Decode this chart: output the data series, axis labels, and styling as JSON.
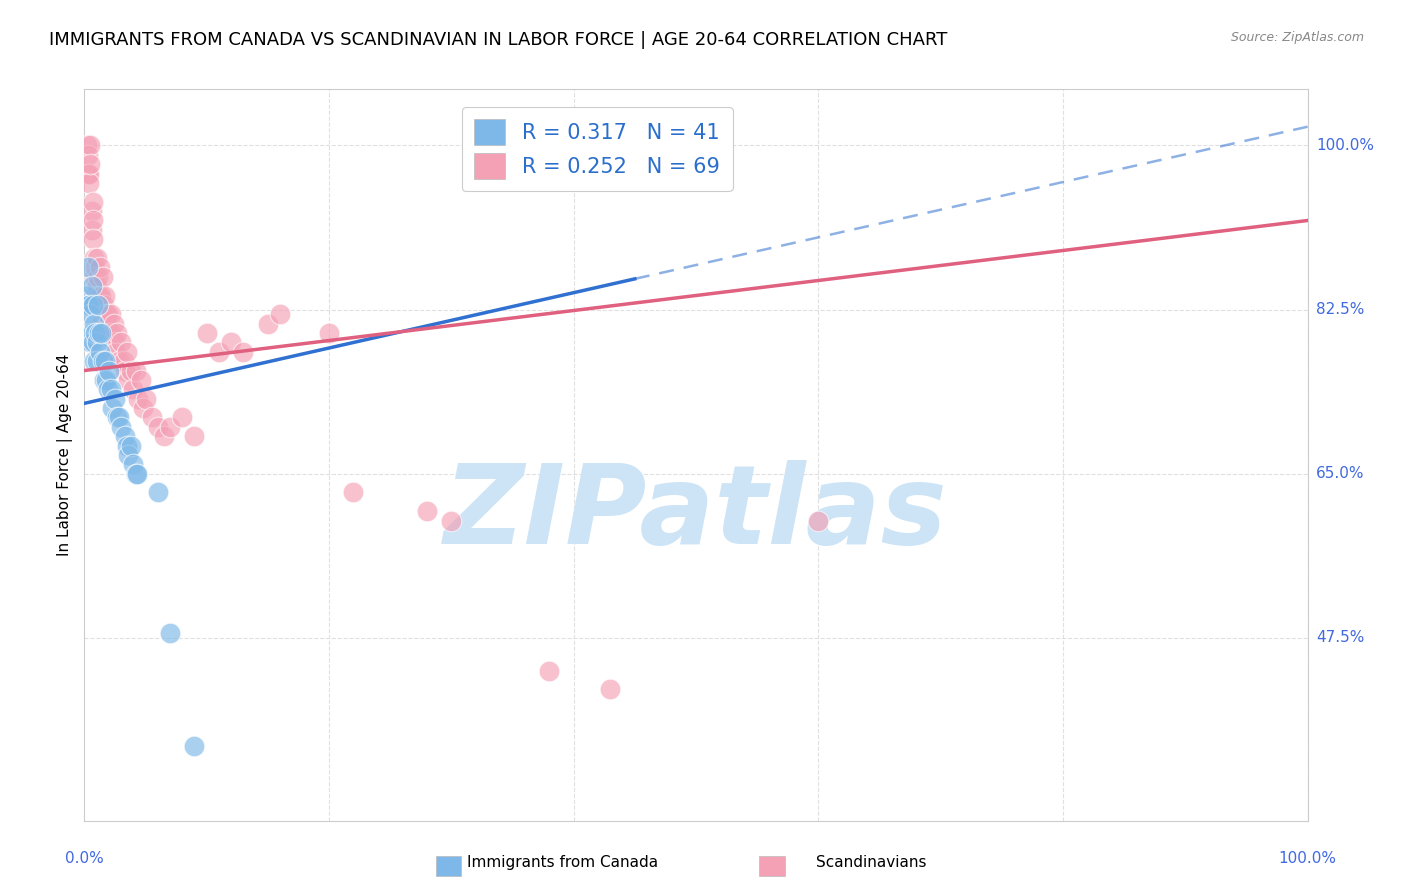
{
  "title": "IMMIGRANTS FROM CANADA VS SCANDINAVIAN IN LABOR FORCE | AGE 20-64 CORRELATION CHART",
  "source": "Source: ZipAtlas.com",
  "ylabel": "In Labor Force | Age 20-64",
  "ytick_labels": [
    "100.0%",
    "82.5%",
    "65.0%",
    "47.5%"
  ],
  "ytick_values": [
    1.0,
    0.825,
    0.65,
    0.475
  ],
  "xlim": [
    0.0,
    1.0
  ],
  "ylim": [
    0.28,
    1.06
  ],
  "canada_R": 0.317,
  "canada_N": 41,
  "scandi_R": 0.252,
  "scandi_N": 69,
  "canada_color": "#7db8e8",
  "scandi_color": "#f4a0b5",
  "canada_line_color": "#3070d0",
  "scandi_line_color": "#e06080",
  "canada_scatter": [
    [
      0.002,
      0.84
    ],
    [
      0.003,
      0.87
    ],
    [
      0.003,
      0.83
    ],
    [
      0.004,
      0.83
    ],
    [
      0.005,
      0.82
    ],
    [
      0.005,
      0.79
    ],
    [
      0.006,
      0.85
    ],
    [
      0.006,
      0.8
    ],
    [
      0.007,
      0.83
    ],
    [
      0.007,
      0.79
    ],
    [
      0.008,
      0.81
    ],
    [
      0.008,
      0.77
    ],
    [
      0.009,
      0.8
    ],
    [
      0.01,
      0.79
    ],
    [
      0.01,
      0.77
    ],
    [
      0.011,
      0.83
    ],
    [
      0.012,
      0.8
    ],
    [
      0.013,
      0.78
    ],
    [
      0.014,
      0.8
    ],
    [
      0.015,
      0.77
    ],
    [
      0.016,
      0.75
    ],
    [
      0.017,
      0.77
    ],
    [
      0.018,
      0.75
    ],
    [
      0.019,
      0.74
    ],
    [
      0.02,
      0.76
    ],
    [
      0.022,
      0.74
    ],
    [
      0.023,
      0.72
    ],
    [
      0.025,
      0.73
    ],
    [
      0.027,
      0.71
    ],
    [
      0.028,
      0.71
    ],
    [
      0.03,
      0.7
    ],
    [
      0.033,
      0.69
    ],
    [
      0.035,
      0.68
    ],
    [
      0.036,
      0.67
    ],
    [
      0.038,
      0.68
    ],
    [
      0.04,
      0.66
    ],
    [
      0.042,
      0.65
    ],
    [
      0.043,
      0.65
    ],
    [
      0.06,
      0.63
    ],
    [
      0.07,
      0.48
    ],
    [
      0.09,
      0.36
    ]
  ],
  "scandi_scatter": [
    [
      0.002,
      1.0
    ],
    [
      0.003,
      0.99
    ],
    [
      0.003,
      0.97
    ],
    [
      0.004,
      0.97
    ],
    [
      0.004,
      0.96
    ],
    [
      0.005,
      1.0
    ],
    [
      0.005,
      0.98
    ],
    [
      0.006,
      0.93
    ],
    [
      0.006,
      0.91
    ],
    [
      0.007,
      0.94
    ],
    [
      0.007,
      0.92
    ],
    [
      0.007,
      0.9
    ],
    [
      0.008,
      0.88
    ],
    [
      0.008,
      0.86
    ],
    [
      0.009,
      0.87
    ],
    [
      0.009,
      0.84
    ],
    [
      0.01,
      0.88
    ],
    [
      0.01,
      0.85
    ],
    [
      0.011,
      0.86
    ],
    [
      0.012,
      0.84
    ],
    [
      0.013,
      0.87
    ],
    [
      0.013,
      0.83
    ],
    [
      0.014,
      0.84
    ],
    [
      0.014,
      0.81
    ],
    [
      0.015,
      0.86
    ],
    [
      0.016,
      0.83
    ],
    [
      0.017,
      0.84
    ],
    [
      0.018,
      0.82
    ],
    [
      0.019,
      0.82
    ],
    [
      0.02,
      0.8
    ],
    [
      0.022,
      0.82
    ],
    [
      0.022,
      0.8
    ],
    [
      0.024,
      0.81
    ],
    [
      0.025,
      0.79
    ],
    [
      0.026,
      0.78
    ],
    [
      0.027,
      0.8
    ],
    [
      0.028,
      0.77
    ],
    [
      0.03,
      0.79
    ],
    [
      0.032,
      0.77
    ],
    [
      0.033,
      0.76
    ],
    [
      0.035,
      0.78
    ],
    [
      0.036,
      0.75
    ],
    [
      0.038,
      0.76
    ],
    [
      0.04,
      0.74
    ],
    [
      0.042,
      0.76
    ],
    [
      0.044,
      0.73
    ],
    [
      0.046,
      0.75
    ],
    [
      0.048,
      0.72
    ],
    [
      0.05,
      0.73
    ],
    [
      0.055,
      0.71
    ],
    [
      0.06,
      0.7
    ],
    [
      0.065,
      0.69
    ],
    [
      0.07,
      0.7
    ],
    [
      0.08,
      0.71
    ],
    [
      0.09,
      0.69
    ],
    [
      0.1,
      0.8
    ],
    [
      0.11,
      0.78
    ],
    [
      0.12,
      0.79
    ],
    [
      0.13,
      0.78
    ],
    [
      0.15,
      0.81
    ],
    [
      0.16,
      0.82
    ],
    [
      0.2,
      0.8
    ],
    [
      0.22,
      0.63
    ],
    [
      0.28,
      0.61
    ],
    [
      0.3,
      0.6
    ],
    [
      0.38,
      0.44
    ],
    [
      0.43,
      0.42
    ],
    [
      0.6,
      0.6
    ]
  ],
  "canada_line_x_start": 0.0,
  "canada_line_x_solid_end": 0.45,
  "canada_line_x_dashed_end": 1.0,
  "canada_line_y_at_0": 0.725,
  "canada_line_y_at_1": 1.02,
  "scandi_line_x_start": 0.0,
  "scandi_line_x_end": 1.0,
  "scandi_line_y_at_0": 0.76,
  "scandi_line_y_at_1": 0.92,
  "watermark_text": "ZIPatlas",
  "watermark_color": "#cce4f6",
  "watermark_fontsize": 80,
  "background_color": "#ffffff",
  "grid_color": "#e0e0e0",
  "grid_style": "--",
  "title_fontsize": 13,
  "axis_label_fontsize": 11,
  "tick_fontsize": 11,
  "legend_fontsize": 15
}
